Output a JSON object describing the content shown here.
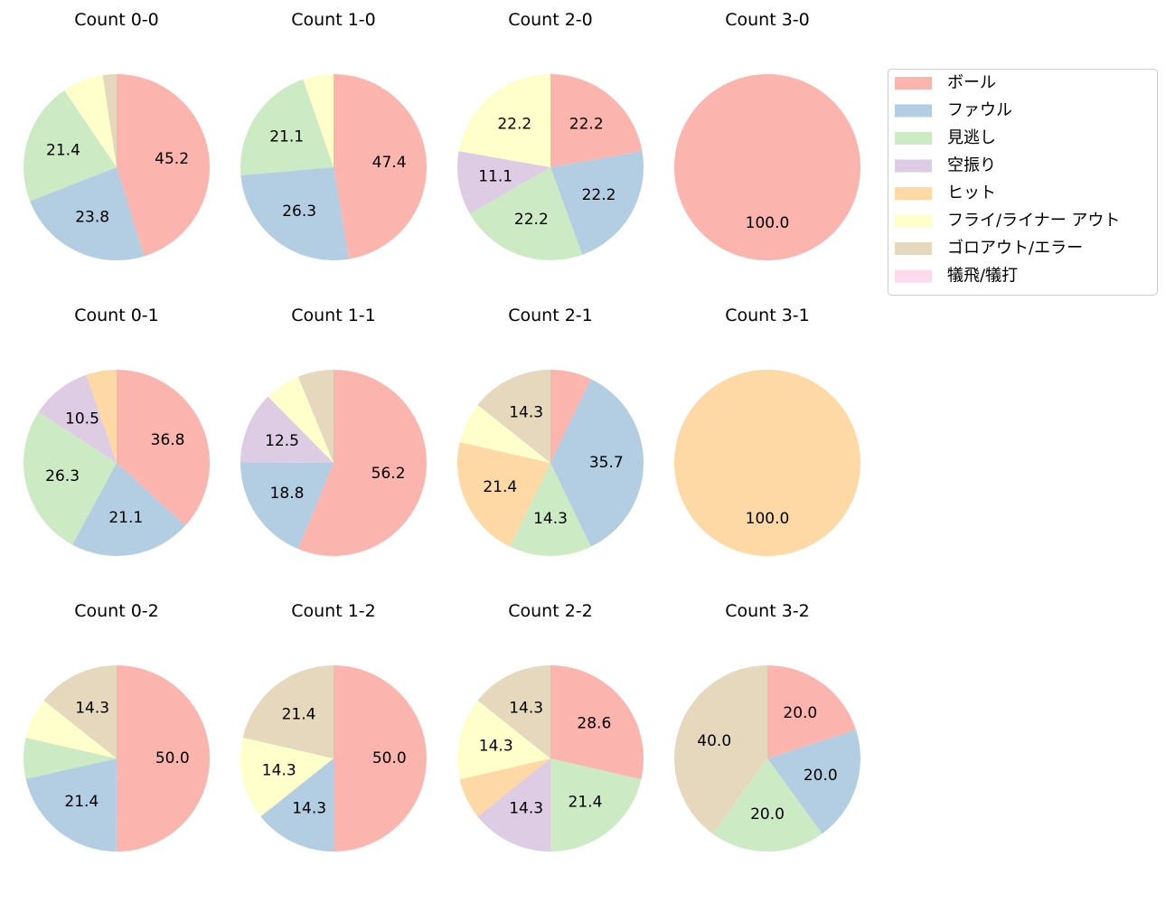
{
  "chart_data": {
    "type": "pie",
    "colors": [
      "#fbb4ae",
      "#b3cde3",
      "#ccebc5",
      "#decbe4",
      "#fed9a6",
      "#ffffcc",
      "#e5d8bd",
      "#fddaec"
    ],
    "legend": {
      "placement": "upper-right",
      "entries": [
        "ボール",
        "ファウル",
        "見逃し",
        "空振り",
        "ヒット",
        "フライ/ライナー アウト",
        "ゴロアウト/エラー",
        "犠飛/犠打"
      ]
    },
    "start_angle_deg": 90,
    "direction": "clockwise",
    "label_min_percent": 10,
    "pies": [
      {
        "title": "Count 0-0",
        "values": [
          45.2,
          23.8,
          21.4,
          0,
          0,
          7.1,
          2.4,
          0
        ]
      },
      {
        "title": "Count 1-0",
        "values": [
          47.4,
          26.3,
          21.1,
          0,
          0,
          5.3,
          0,
          0
        ]
      },
      {
        "title": "Count 2-0",
        "values": [
          22.2,
          22.2,
          22.2,
          11.1,
          0,
          22.2,
          0,
          0
        ]
      },
      {
        "title": "Count 3-0",
        "values": [
          100.0,
          0,
          0,
          0,
          0,
          0,
          0,
          0
        ]
      },
      {
        "title": "Count 0-1",
        "values": [
          36.8,
          21.1,
          26.3,
          10.5,
          5.3,
          0,
          0,
          0
        ]
      },
      {
        "title": "Count 1-1",
        "values": [
          56.2,
          18.8,
          0,
          12.5,
          0,
          6.2,
          6.2,
          0
        ]
      },
      {
        "title": "Count 2-1",
        "values": [
          7.1,
          35.7,
          14.3,
          0,
          21.4,
          7.1,
          14.3,
          0
        ]
      },
      {
        "title": "Count 3-1",
        "values": [
          0,
          0,
          0,
          0,
          100.0,
          0,
          0,
          0
        ]
      },
      {
        "title": "Count 0-2",
        "values": [
          50.0,
          21.4,
          7.1,
          0,
          0,
          7.1,
          14.3,
          0
        ]
      },
      {
        "title": "Count 1-2",
        "values": [
          50.0,
          14.3,
          0,
          0,
          0,
          14.3,
          21.4,
          0
        ]
      },
      {
        "title": "Count 2-2",
        "values": [
          28.6,
          0,
          21.4,
          14.3,
          7.1,
          14.3,
          14.3,
          0
        ]
      },
      {
        "title": "Count 3-2",
        "values": [
          20.0,
          20.0,
          20.0,
          0,
          0,
          0,
          40.0,
          0
        ]
      }
    ]
  }
}
